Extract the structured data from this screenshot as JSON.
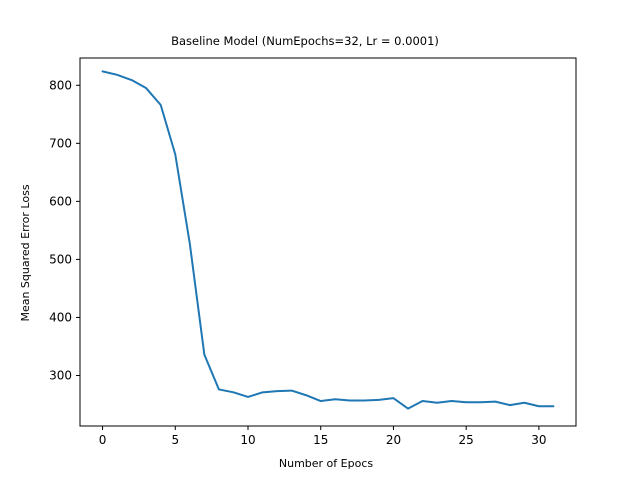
{
  "chart_data": {
    "type": "line",
    "title": "Baseline Model (NumEpochs=32, Lr = 0.0001)",
    "xlabel": "Number of Epocs",
    "ylabel": "Mean Squared Error Loss",
    "xlim": [
      -1.55,
      32.55
    ],
    "ylim": [
      213,
      847
    ],
    "xticks": [
      0,
      5,
      10,
      15,
      20,
      25,
      30
    ],
    "yticks": [
      300,
      400,
      500,
      600,
      700,
      800
    ],
    "grid": false,
    "line_color": "#1f77b4",
    "series": [
      {
        "x": [
          0,
          1,
          2,
          3,
          4,
          5,
          6,
          7,
          8,
          9,
          10,
          11,
          12,
          13,
          14,
          15,
          16,
          17,
          18,
          19,
          20,
          21,
          22,
          23,
          24,
          25,
          26,
          27,
          28,
          29,
          30,
          31
        ],
        "values": [
          824,
          818,
          809,
          795,
          766,
          681,
          527,
          336,
          276,
          271,
          263,
          271,
          273,
          274,
          266,
          256,
          259,
          257,
          257,
          258,
          261,
          243,
          256,
          253,
          256,
          254,
          254,
          255,
          249,
          253,
          247,
          247
        ]
      }
    ]
  }
}
